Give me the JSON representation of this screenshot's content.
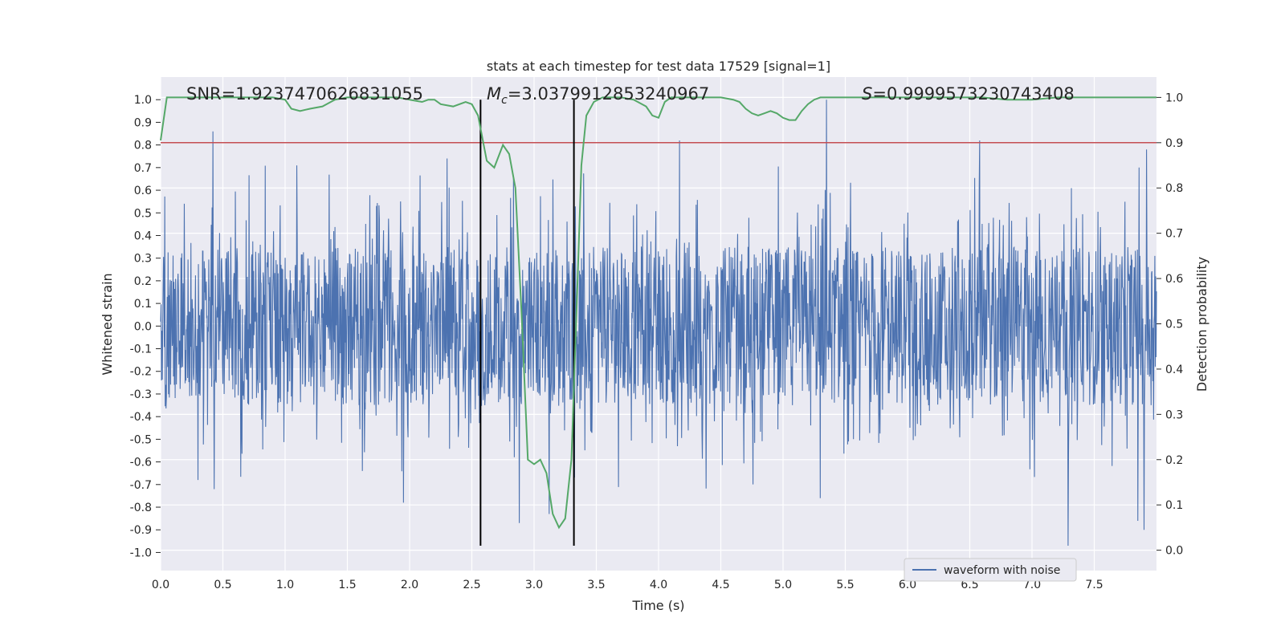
{
  "chart_data": {
    "type": "line",
    "title": "stats at each timestep for test data 17529 [signal=1]",
    "xlabel": "Time (s)",
    "ylabel": "Whitened strain",
    "y2label": "Detection probability",
    "xlim": [
      0.0,
      8.0
    ],
    "ylim": [
      -1.08,
      1.1
    ],
    "y2lim": [
      -0.045,
      1.045
    ],
    "xticks": [
      "0.0",
      "0.5",
      "1.0",
      "1.5",
      "2.0",
      "2.5",
      "3.0",
      "3.5",
      "4.0",
      "4.5",
      "5.0",
      "5.5",
      "6.0",
      "6.5",
      "7.0",
      "7.5"
    ],
    "yticks": [
      "1.0",
      "0.9",
      "0.8",
      "0.7",
      "0.6",
      "0.5",
      "0.4",
      "0.3",
      "0.2",
      "0.1",
      "0.0",
      "-0.1",
      "-0.2",
      "-0.3",
      "-0.4",
      "-0.5",
      "-0.6",
      "-0.7",
      "-0.8",
      "-0.9",
      "-1.0"
    ],
    "y2ticks": [
      "1.0",
      "0.9",
      "0.8",
      "0.7",
      "0.6",
      "0.5",
      "0.4",
      "0.3",
      "0.2",
      "0.1",
      "0.0"
    ],
    "legend": {
      "label": "waveform with noise",
      "placement": "lower-right"
    },
    "annotations": {
      "snr": "SNR=1.9237470626831055",
      "mc_prefix": "M",
      "mc_sub": "c",
      "mc_value": "=3.0379912853240967",
      "s_prefix": "S",
      "s_value": "=0.9999573230743408"
    },
    "threshold": {
      "axis": "right",
      "value": 0.9,
      "color": "#c44e52"
    },
    "event_lines": {
      "x": [
        2.57,
        3.32
      ],
      "ymin": -0.97,
      "ymax": 1.0,
      "color": "#000000"
    },
    "series": [
      {
        "name": "waveform with noise",
        "axis": "left",
        "color": "#4c72b0",
        "kind": "noise",
        "x_range": [
          0.0,
          8.0
        ],
        "core_amplitude": 0.35,
        "peaks": [
          {
            "x": 0.42,
            "y": 0.86
          },
          {
            "x": 0.43,
            "y": -0.72
          },
          {
            "x": 0.3,
            "y": -0.68
          },
          {
            "x": 2.3,
            "y": 0.74
          },
          {
            "x": 1.95,
            "y": -0.78
          },
          {
            "x": 2.88,
            "y": -0.87
          },
          {
            "x": 3.12,
            "y": -0.83
          },
          {
            "x": 4.17,
            "y": 0.82
          },
          {
            "x": 5.35,
            "y": 1.0
          },
          {
            "x": 5.3,
            "y": -0.76
          },
          {
            "x": 6.58,
            "y": 0.82
          },
          {
            "x": 7.29,
            "y": -0.97
          },
          {
            "x": 7.9,
            "y": -0.9
          },
          {
            "x": 7.92,
            "y": 0.78
          },
          {
            "x": 7.85,
            "y": -0.86
          }
        ]
      },
      {
        "name": "detection probability",
        "axis": "right",
        "color": "#55a868",
        "x": [
          0.0,
          0.05,
          0.1,
          0.2,
          0.3,
          0.4,
          0.5,
          0.6,
          0.7,
          0.8,
          0.9,
          1.0,
          1.05,
          1.12,
          1.2,
          1.3,
          1.4,
          1.5,
          1.6,
          1.7,
          1.8,
          1.9,
          2.0,
          2.1,
          2.15,
          2.2,
          2.25,
          2.35,
          2.45,
          2.5,
          2.55,
          2.62,
          2.68,
          2.75,
          2.8,
          2.85,
          2.9,
          2.95,
          3.0,
          3.05,
          3.1,
          3.15,
          3.2,
          3.25,
          3.3,
          3.35,
          3.38,
          3.42,
          3.48,
          3.55,
          3.6,
          3.65,
          3.7,
          3.8,
          3.9,
          3.95,
          4.0,
          4.05,
          4.1,
          4.2,
          4.3,
          4.4,
          4.5,
          4.6,
          4.65,
          4.7,
          4.75,
          4.8,
          4.85,
          4.9,
          4.95,
          5.0,
          5.05,
          5.1,
          5.15,
          5.2,
          5.25,
          5.3,
          5.35,
          5.4,
          5.5,
          5.6,
          5.8,
          6.0,
          6.2,
          6.4,
          6.6,
          6.8,
          7.0,
          7.2,
          7.4,
          7.6,
          7.8,
          8.0
        ],
        "y": [
          0.905,
          1.0,
          1.0,
          1.0,
          1.0,
          1.0,
          1.0,
          1.0,
          1.0,
          1.0,
          1.0,
          0.995,
          0.975,
          0.97,
          0.975,
          0.98,
          0.995,
          1.0,
          1.0,
          1.0,
          1.0,
          1.0,
          0.995,
          0.99,
          0.995,
          0.995,
          0.985,
          0.98,
          0.99,
          0.985,
          0.96,
          0.86,
          0.845,
          0.895,
          0.875,
          0.8,
          0.52,
          0.2,
          0.19,
          0.2,
          0.17,
          0.08,
          0.05,
          0.07,
          0.2,
          0.6,
          0.85,
          0.96,
          0.99,
          1.0,
          1.0,
          1.0,
          1.0,
          0.995,
          0.98,
          0.96,
          0.955,
          0.99,
          1.0,
          1.0,
          1.0,
          1.0,
          1.0,
          0.995,
          0.99,
          0.975,
          0.965,
          0.96,
          0.965,
          0.97,
          0.965,
          0.955,
          0.95,
          0.95,
          0.97,
          0.985,
          0.995,
          1.0,
          1.0,
          1.0,
          1.0,
          1.0,
          1.0,
          1.0,
          1.0,
          1.0,
          1.0,
          0.995,
          0.995,
          1.0,
          1.0,
          1.0,
          1.0,
          1.0
        ]
      }
    ]
  }
}
